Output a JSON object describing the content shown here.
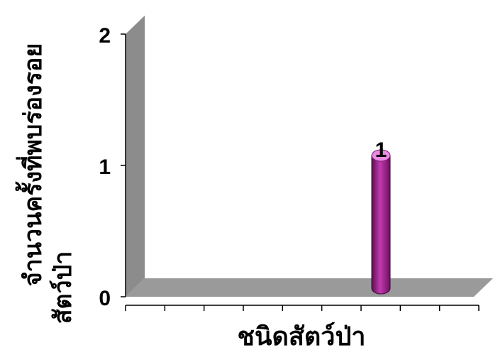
{
  "chart_data": {
    "type": "bar",
    "bar_shape": "cylinder",
    "categories": [
      ""
    ],
    "values": [
      1
    ],
    "data_labels": [
      "1"
    ],
    "ylim": [
      0,
      2
    ],
    "yticks": [
      "0",
      "1",
      "2"
    ],
    "xlabel": "ชนิดสัตว์ป่า",
    "ylabel_lines": [
      "จำนวนครั้งที่พบร่องรอย",
      "สัตว์ป่า"
    ],
    "grid": false,
    "legend": "none",
    "colors": {
      "bar": "#b0299a",
      "bar_top": "#e98be0",
      "wall": "#8c8c8c",
      "floor": "#9a9a9a"
    }
  }
}
